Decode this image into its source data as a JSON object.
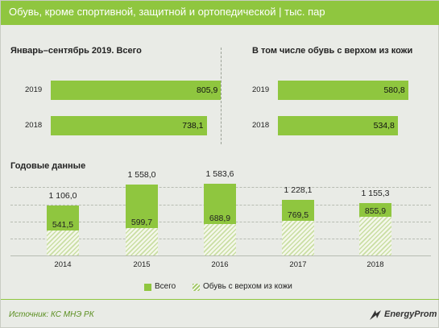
{
  "header": {
    "title": "Обувь, кроме спортивной, защитной и ортопедической",
    "separator": "|",
    "unit": "тыс. пар"
  },
  "colors": {
    "accent": "#8fc63f",
    "background": "#e9ebe6",
    "hatch": "#c9dea3"
  },
  "chart_data": [
    {
      "type": "bar",
      "orientation": "horizontal",
      "title": "Январь–сентябрь  2019. Всего",
      "categories": [
        "2019",
        "2018"
      ],
      "values": [
        805.9,
        738.1
      ],
      "value_labels": [
        "805,9",
        "738,1"
      ],
      "xlim": [
        0,
        900
      ]
    },
    {
      "type": "bar",
      "orientation": "horizontal",
      "title": "В том числе обувь с верхом из кожи",
      "categories": [
        "2019",
        "2018"
      ],
      "values": [
        580.8,
        534.8
      ],
      "value_labels": [
        "580,8",
        "534,8"
      ],
      "xlim": [
        0,
        650
      ]
    },
    {
      "type": "bar",
      "orientation": "vertical",
      "stacking": "overlay",
      "title": "Годовые данные",
      "categories": [
        "2014",
        "2015",
        "2016",
        "2017",
        "2018"
      ],
      "series": [
        {
          "name": "Всего",
          "values": [
            1106.0,
            1558.0,
            1583.6,
            1228.1,
            1155.3
          ],
          "labels": [
            "1 106,0",
            "1 558,0",
            "1 583,6",
            "1 228,1",
            "1 155,3"
          ]
        },
        {
          "name": "Обувь с верхом из кожи",
          "values": [
            541.5,
            599.7,
            688.9,
            769.5,
            855.9
          ],
          "labels": [
            "541,5",
            "599,7",
            "688,9",
            "769,5",
            "855,9"
          ]
        }
      ],
      "ylim": [
        0,
        1650
      ],
      "grid": true,
      "legend": "bottom"
    }
  ],
  "footer": {
    "source": "Источник: КС МНЭ РК",
    "logo_text": "EnergyProm"
  }
}
